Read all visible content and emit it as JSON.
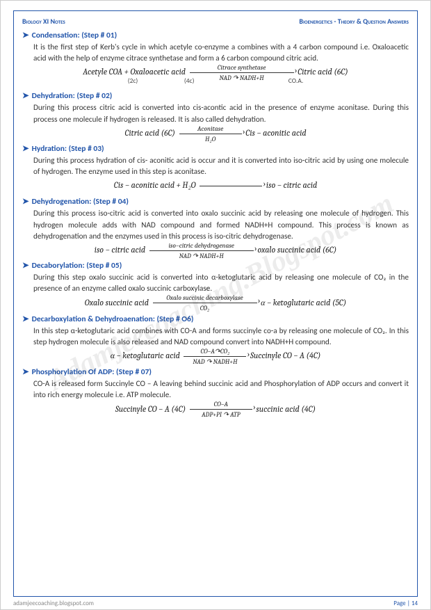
{
  "header": {
    "left": "Biology XI Notes",
    "right": "Bioenergetics - Theory & Question Answers"
  },
  "footer": {
    "left": "adamjeecoaching.blogspot.com",
    "right": "Page | 14"
  },
  "watermark": "Adamjeecoaching.Blogspot.com",
  "s": [
    {
      "t": "Condensation: (Step # 01)",
      "b": "It is the first step of Kerb's cycle in which acetyle co-enzyme a combines with a 4 carbon compound i.e. Oxaloacetic acid with the help of enzyme citrace synthetase and form a 6 carbon compound citric acid.",
      "eL": "Acetyle COA + Oxaloacetic acid",
      "eT": "Citrace synthetase",
      "eB": "NAD ↷ NADH+H",
      "eR": "Citric acid (6C)",
      "n": "(2c)                               (4c)                                                               CO.A."
    },
    {
      "t": "Dehydration: (Step # 02)",
      "b": "During this process citric acid is converted into cis-acontic acid in the presence of enzyme aconitase. During this process one molecule if hydrogen is released. It is also called dehydration.",
      "eL": "Citric acid (6C)",
      "eT": "Aconitase",
      "eB": "H₂O",
      "eR": "Cis − aconitic acid"
    },
    {
      "t": "Hydration: (Step # 03)",
      "b": "During this process hydration of cis- aconitic acid is occur and it is converted into iso-citric acid by using one molecule of hydrogen. The enzyme used in this step is aconitase.",
      "eL": "Cis − aconitic acid + H₂O",
      "eT": "",
      "eB": "",
      "eR": "iso − citric acid"
    },
    {
      "t": "Dehydrogenation: (Step # 04)",
      "b": "During this process iso-citric acid is converted into oxalo succinic acid by releasing one molecule of hydrogen. This hydrogen molecule adds with NAD compound and formed NADH+H compound. This process is known as dehydrogenation and the enzymes used in this process is iso-citric dehydrogenase.",
      "eL": "iso − citric acid",
      "eT": "iso−citric dehydrogenase",
      "eB": "NAD ↷ NADH+H",
      "eR": "oxalo succinic acid (6C)"
    },
    {
      "t": "Decaborylation: (Step # 05)",
      "b": "During this step oxalo succinic acid is converted into α-ketoglutaric acid by releasing one molecule of CO₂ in the presence of an enzyme called oxalo succinic carboxylase.",
      "eL": "Oxalo succinic acid",
      "eT": "Oxalo succinic decarboxylase",
      "eB": "CO₂",
      "eR": "α − ketoglutaric acid (5C)"
    },
    {
      "t": "Decarboxylation & Dehydroaenation: (Step # O6)",
      "b": "In this step α-ketoglutaric acid combines with CO-A and forms succinyle co-a by releasing one molecule of CO₂. In this step hydrogen molecule is also released and NAD compound convert into NADH+H compound.",
      "eL": "α − ketoglutaric acid",
      "eT": "CO−A↷CO₂",
      "eB": "NAD ↷ NADH+H",
      "eR": "Succinyle CO − A (4C)"
    },
    {
      "t": "Phosphorylation Of ADP: (Step # 07)",
      "b": "CO-A is released form Succinyle CO – A leaving behind succinic acid and Phosphorylation of ADP occurs and convert it into rich energy molecule i.e. ATP molecule.",
      "eL": "Succinyle CO − A (4C)",
      "eT": "CO−A",
      "eB": "ADP+PI ↷ ATP",
      "eR": "succinic acid (4C)"
    }
  ]
}
